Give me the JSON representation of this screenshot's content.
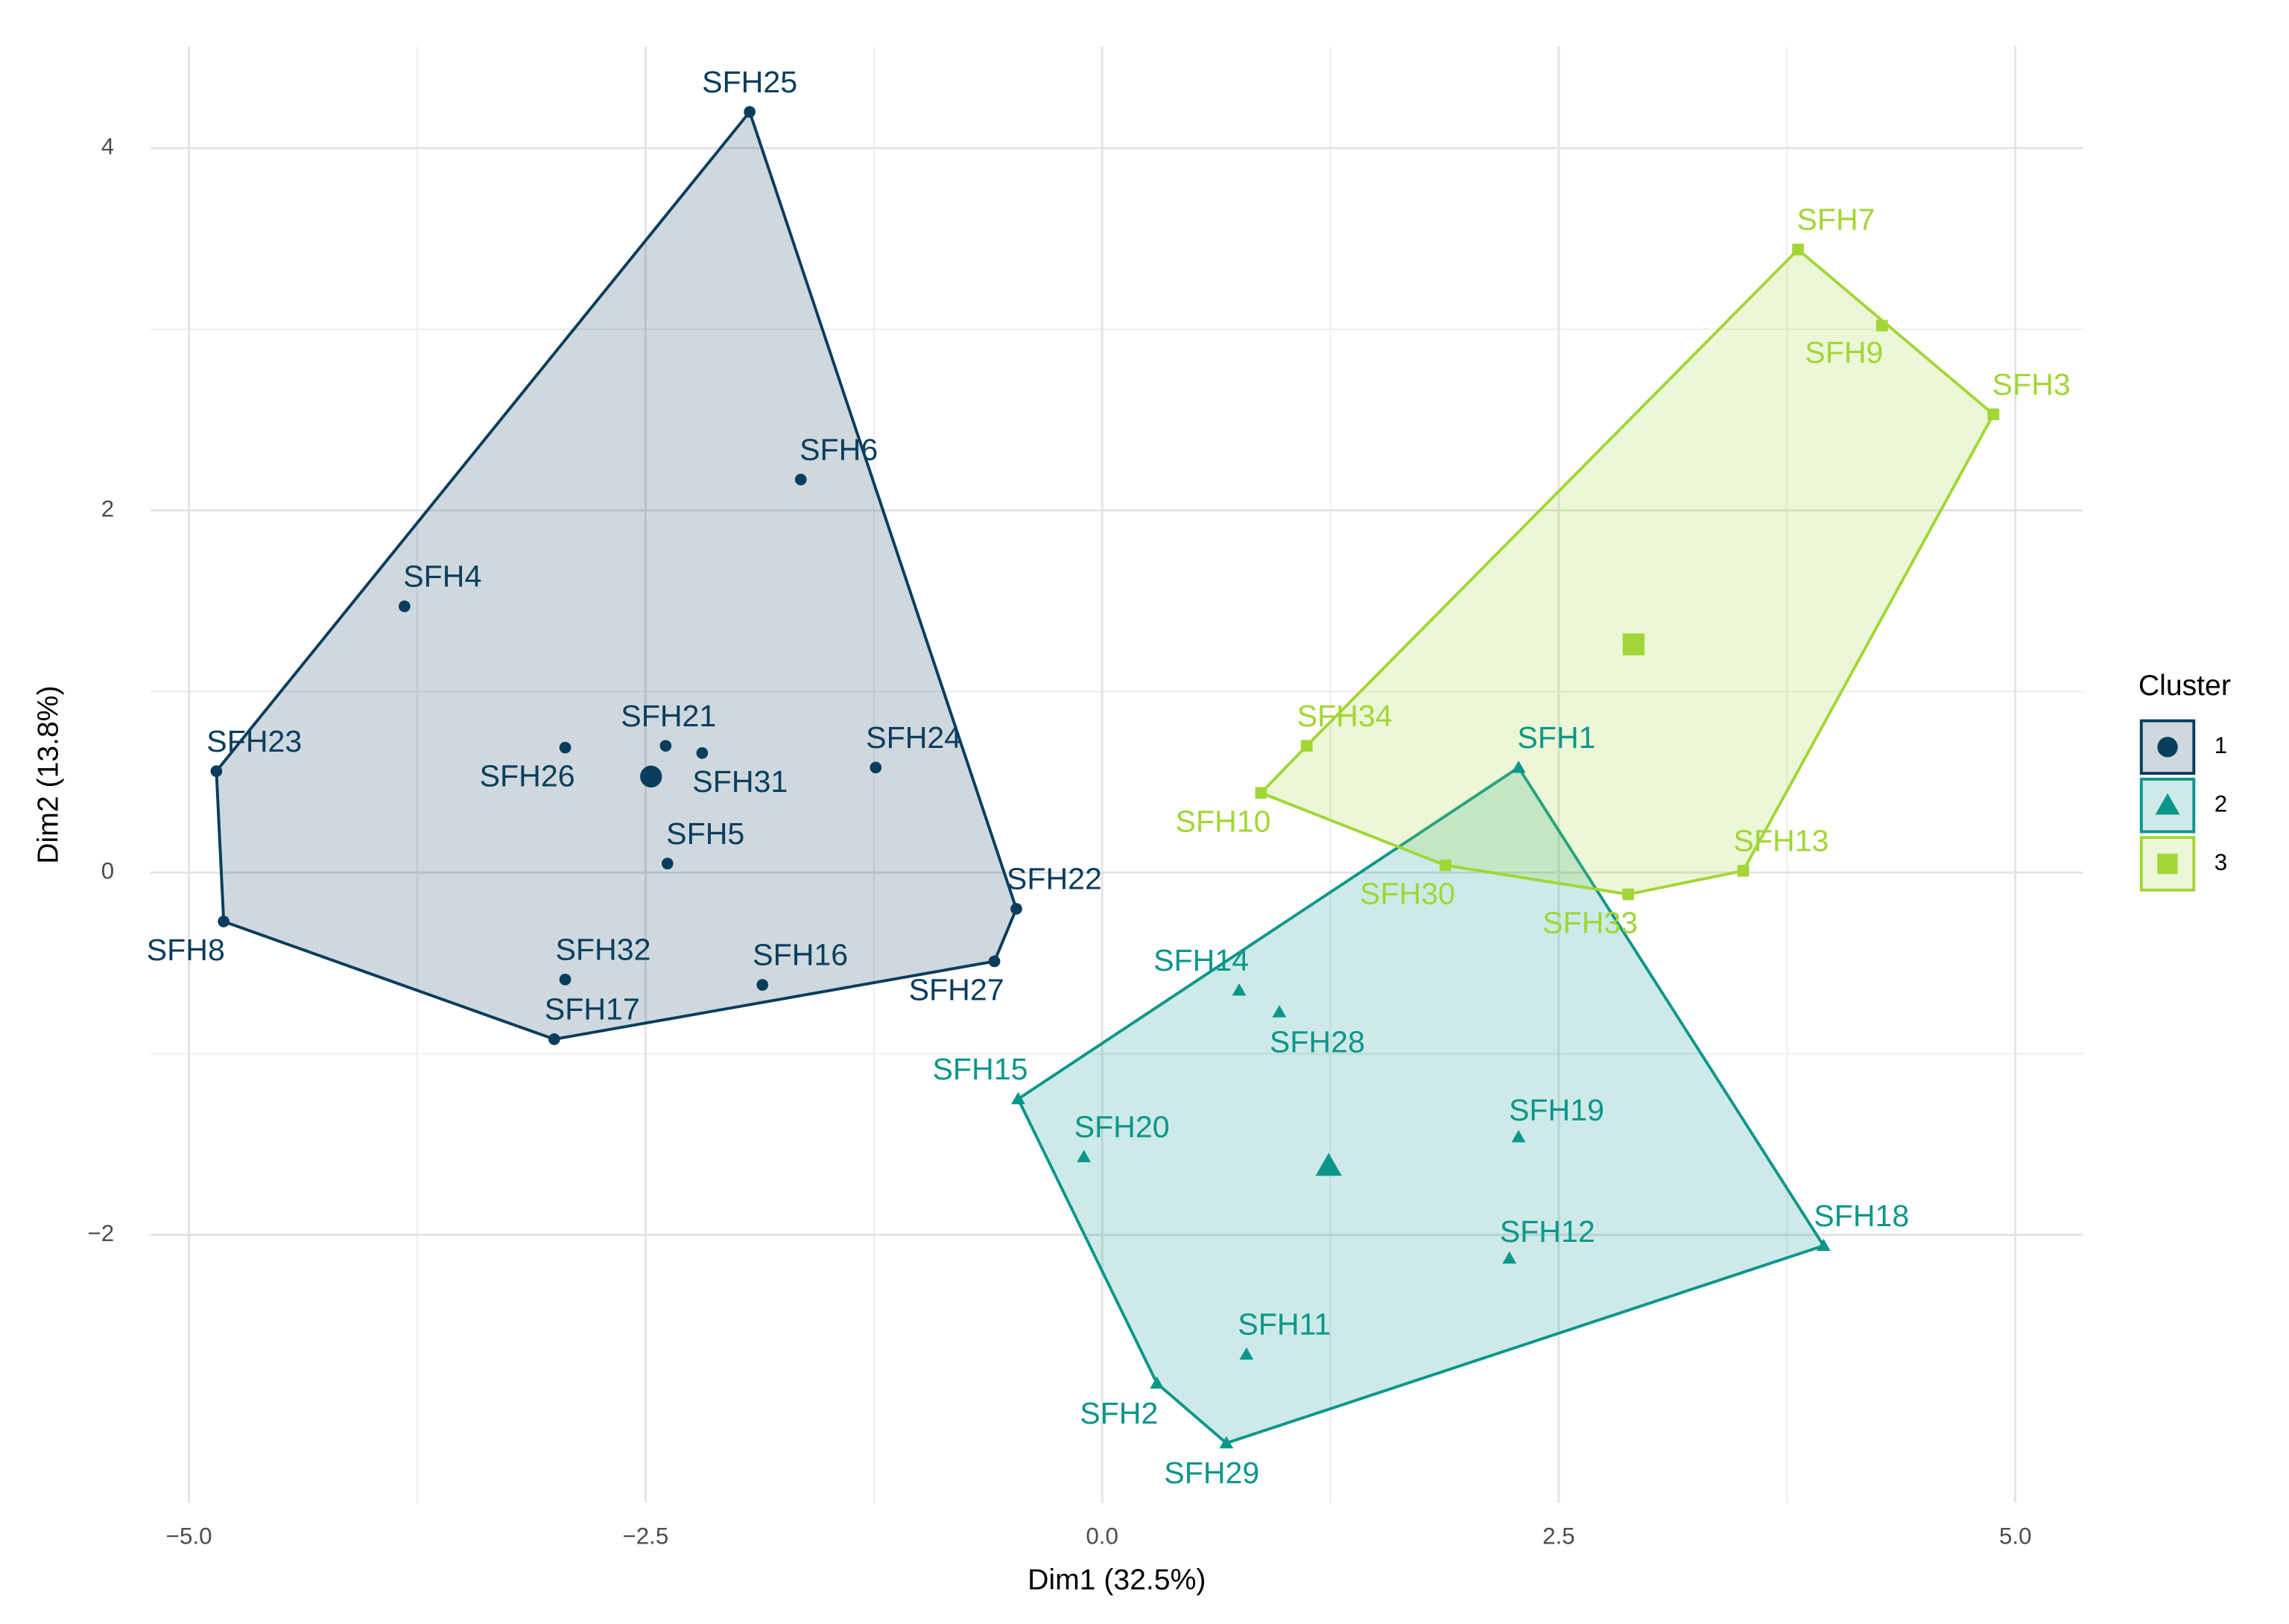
{
  "chart_data": {
    "type": "scatter",
    "xlabel": "Dim1 (32.5%)",
    "ylabel": "Dim2 (13.8%)",
    "xlim": [
      -5.21,
      5.37
    ],
    "ylim": [
      -3.48,
      4.56
    ],
    "xticks": [
      {
        "value": -5,
        "label": "−5.0"
      },
      {
        "value": -2.5,
        "label": "−2.5"
      },
      {
        "value": 0,
        "label": "0.0"
      },
      {
        "value": 2.5,
        "label": "2.5"
      },
      {
        "value": 5,
        "label": "5.0"
      }
    ],
    "yticks": [
      {
        "value": -2,
        "label": "−2"
      },
      0,
      2,
      4
    ],
    "grid": true,
    "legend_title": "Cluster",
    "series": [
      {
        "name": "1",
        "color": "#0a3d5c",
        "shape": "circle",
        "labels": [
          "SFH25",
          "SFH6",
          "SFH4",
          "SFH23",
          "SFH21",
          "SFH26",
          "SFH31",
          "SFH24",
          "SFH5",
          "SFH22",
          "SFH8",
          "SFH32",
          "SFH16",
          "SFH27",
          "SFH17"
        ],
        "x": [
          -1.93,
          -1.65,
          -3.82,
          -4.85,
          -2.39,
          -2.94,
          -2.19,
          -1.24,
          -2.38,
          -0.47,
          -4.81,
          -2.94,
          -1.86,
          -0.59,
          -3.0
        ],
        "y": [
          4.2,
          2.17,
          1.47,
          0.56,
          0.7,
          0.69,
          0.66,
          0.58,
          0.05,
          -0.2,
          -0.27,
          -0.59,
          -0.62,
          -0.49,
          -0.92
        ],
        "centroid": [
          -2.47,
          0.53
        ]
      },
      {
        "name": "2",
        "color": "#0b968a",
        "shape": "triangle",
        "labels": [
          "SFH1",
          "SFH14",
          "SFH28",
          "SFH15",
          "SFH20",
          "SFH19",
          "SFH18",
          "SFH12",
          "SFH11",
          "SFH2",
          "SFH29"
        ],
        "x": [
          2.28,
          0.75,
          0.97,
          -0.46,
          -0.1,
          2.28,
          3.95,
          2.23,
          0.79,
          0.3,
          0.68
        ],
        "y": [
          0.58,
          -0.65,
          -0.77,
          -1.25,
          -1.57,
          -1.46,
          -2.06,
          -2.13,
          -2.66,
          -2.82,
          -3.15
        ],
        "centroid": [
          1.24,
          -1.62
        ]
      },
      {
        "name": "3",
        "color": "#a2d636",
        "shape": "square",
        "labels": [
          "SFH7",
          "SFH9",
          "SFH3",
          "SFH34",
          "SFH10",
          "SFH30",
          "SFH33",
          "SFH13"
        ],
        "x": [
          3.81,
          4.27,
          4.88,
          1.12,
          0.87,
          1.88,
          2.88,
          3.51
        ],
        "y": [
          3.44,
          3.02,
          2.53,
          0.7,
          0.44,
          0.04,
          -0.12,
          0.01
        ],
        "centroid": [
          2.91,
          1.26
        ]
      }
    ]
  }
}
